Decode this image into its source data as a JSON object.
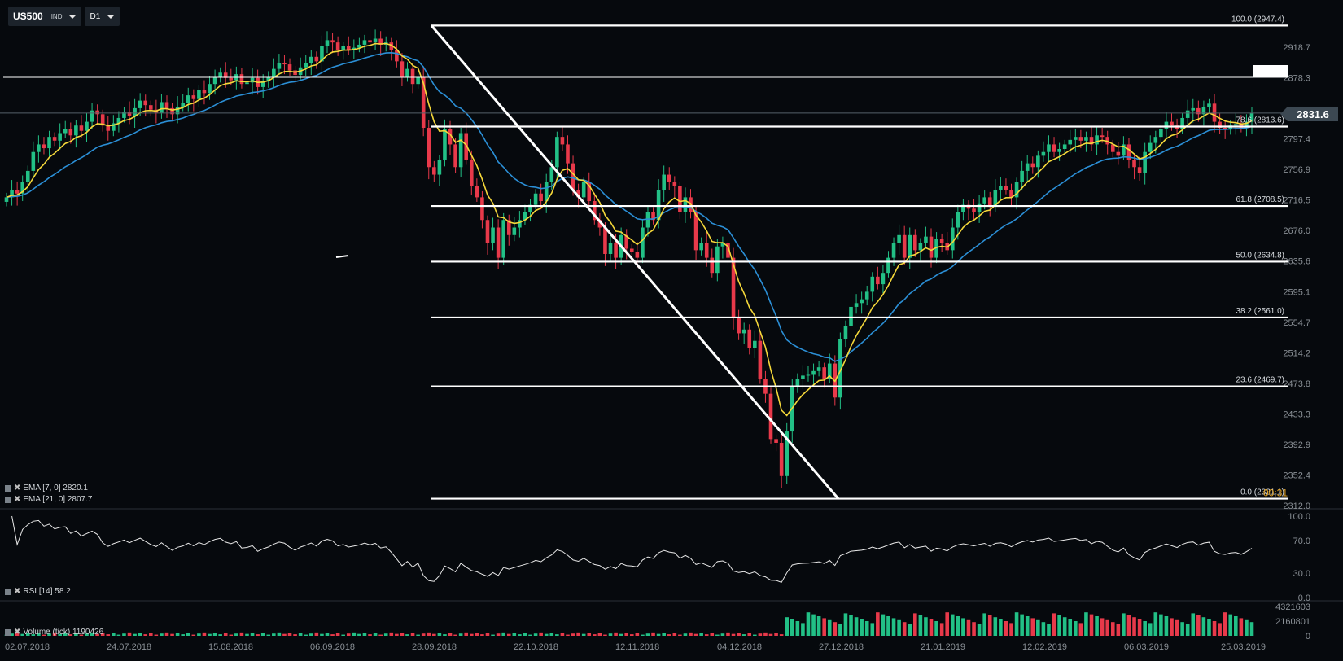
{
  "toolbar": {
    "symbol": "US500",
    "symbol_type": "IND",
    "timeframe": "D1"
  },
  "price_axis": {
    "labels": [
      "2918.7",
      "2878.3",
      "2797.4",
      "2756.9",
      "2716.5",
      "2676.0",
      "2635.6",
      "2595.1",
      "2554.7",
      "2514.2",
      "2473.8",
      "2433.3",
      "2392.9",
      "2352.4",
      "2312.0"
    ],
    "current_price": "2831.6"
  },
  "fib_levels": [
    {
      "label": "100.0 (2947.4)",
      "value": 2947.4
    },
    {
      "label": "78.6 (2813.6)",
      "value": 2813.6
    },
    {
      "label": "61.8 (2708.5)",
      "value": 2708.5
    },
    {
      "label": "50.0 (2634.8)",
      "value": 2634.8
    },
    {
      "label": "38.2 (2561.0)",
      "value": 2561.0
    },
    {
      "label": "23.6 (2469.7)",
      "value": 2469.7
    },
    {
      "label": "0.0 (2321.1)",
      "value": 2321.1
    }
  ],
  "fib_overlay_label": "00:31",
  "legends": {
    "ema7": "EMA [7, 0] 2820.1",
    "ema21": "EMA [21, 0] 2807.7",
    "rsi": "RSI [14] 58.2",
    "volume": "Volume (tick) 1190426"
  },
  "rsi_axis": [
    "100.0",
    "70.0",
    "30.0",
    "0.0"
  ],
  "volume_axis": [
    "4321603",
    "2160801",
    "0"
  ],
  "date_axis": [
    "02.07.2018",
    "24.07.2018",
    "15.08.2018",
    "06.09.2018",
    "28.09.2018",
    "22.10.2018",
    "12.11.2018",
    "04.12.2018",
    "27.12.2018",
    "21.01.2019",
    "12.02.2019",
    "06.03.2019",
    "25.03.2019"
  ],
  "colors": {
    "background": "#06090d",
    "bull": "#22c086",
    "bear": "#e8394a",
    "ema7": "#f5d83a",
    "ema21": "#2b8fd6",
    "line": "#ffffff",
    "axis_text": "#8a9096"
  },
  "chart_data": {
    "type": "candlestick",
    "closes": [
      2720,
      2730,
      2725,
      2740,
      2755,
      2780,
      2790,
      2785,
      2800,
      2795,
      2805,
      2810,
      2802,
      2815,
      2808,
      2820,
      2835,
      2830,
      2815,
      2808,
      2818,
      2825,
      2833,
      2828,
      2838,
      2848,
      2842,
      2836,
      2832,
      2846,
      2838,
      2830,
      2840,
      2845,
      2855,
      2850,
      2862,
      2858,
      2870,
      2880,
      2885,
      2878,
      2875,
      2883,
      2870,
      2872,
      2878,
      2866,
      2874,
      2880,
      2890,
      2898,
      2896,
      2888,
      2882,
      2892,
      2898,
      2906,
      2900,
      2920,
      2928,
      2925,
      2915,
      2920,
      2915,
      2918,
      2922,
      2928,
      2925,
      2930,
      2922,
      2925,
      2915,
      2900,
      2880,
      2890,
      2870,
      2880,
      2812,
      2760,
      2750,
      2770,
      2810,
      2790,
      2760,
      2805,
      2770,
      2735,
      2720,
      2690,
      2660,
      2680,
      2640,
      2690,
      2670,
      2680,
      2690,
      2700,
      2710,
      2725,
      2715,
      2740,
      2760,
      2800,
      2790,
      2765,
      2730,
      2720,
      2740,
      2715,
      2690,
      2680,
      2645,
      2660,
      2640,
      2670,
      2652,
      2648,
      2640,
      2680,
      2700,
      2690,
      2730,
      2750,
      2740,
      2735,
      2700,
      2720,
      2700,
      2650,
      2660,
      2640,
      2620,
      2655,
      2660,
      2640,
      2560,
      2540,
      2545,
      2520,
      2530,
      2480,
      2460,
      2400,
      2395,
      2351,
      2410,
      2470,
      2480,
      2484,
      2485,
      2490,
      2495,
      2480,
      2500,
      2455,
      2532,
      2550,
      2575,
      2580,
      2585,
      2595,
      2615,
      2605,
      2620,
      2640,
      2660,
      2670,
      2640,
      2670,
      2650,
      2660,
      2668,
      2640,
      2665,
      2660,
      2650,
      2680,
      2700,
      2710,
      2705,
      2700,
      2712,
      2720,
      2708,
      2730,
      2735,
      2730,
      2720,
      2740,
      2755,
      2765,
      2760,
      2775,
      2780,
      2790,
      2780,
      2784,
      2790,
      2796,
      2800,
      2795,
      2800,
      2790,
      2802,
      2800,
      2790,
      2780,
      2775,
      2790,
      2770,
      2760,
      2752,
      2780,
      2792,
      2800,
      2810,
      2820,
      2815,
      2810,
      2825,
      2835,
      2838,
      2830,
      2840,
      2844,
      2820,
      2812,
      2810,
      2815,
      2817,
      2812,
      2820,
      2831.6
    ],
    "ema7_last": 2820.1,
    "ema21_last": 2807.7,
    "rsi_last": 58.2,
    "volume_last": 1190426,
    "ylim": [
      2312.0,
      2960.0
    ],
    "rsi_range": [
      0,
      100
    ],
    "volume_range": [
      0,
      4321603
    ]
  }
}
